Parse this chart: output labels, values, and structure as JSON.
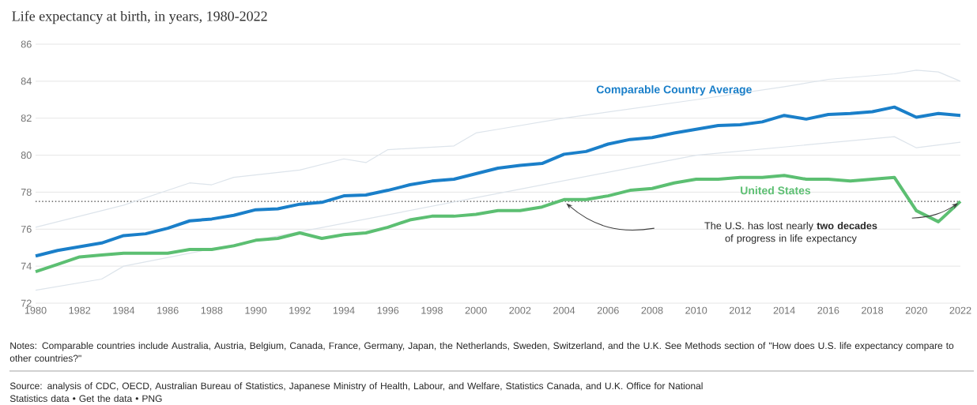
{
  "chart_data": {
    "type": "line",
    "title": "Life expectancy at birth, in years, 1980-2022",
    "x": [
      1980,
      1981,
      1982,
      1983,
      1984,
      1985,
      1986,
      1987,
      1988,
      1989,
      1990,
      1991,
      1992,
      1993,
      1994,
      1995,
      1996,
      1997,
      1998,
      1999,
      2000,
      2001,
      2002,
      2003,
      2004,
      2005,
      2006,
      2007,
      2008,
      2009,
      2010,
      2011,
      2012,
      2013,
      2014,
      2015,
      2016,
      2017,
      2018,
      2019,
      2020,
      2021,
      2022
    ],
    "series": [
      {
        "color": "#dde4eb",
        "x": [
          1980,
          1984,
          1987,
          1988,
          1989,
          1992,
          1994,
          1995,
          1996,
          1999,
          2000,
          2001,
          2004,
          2010,
          2014,
          2016,
          2019,
          2020,
          2021,
          2022
        ],
        "values": [
          76.1,
          77.3,
          78.5,
          78.4,
          78.8,
          79.2,
          79.8,
          79.6,
          80.3,
          80.5,
          81.2,
          81.4,
          82.0,
          83.0,
          83.7,
          84.1,
          84.4,
          84.6,
          84.5,
          84.0
        ]
      },
      {
        "color": "#dde4eb",
        "x": [
          1980,
          1983,
          1984,
          1990,
          2000,
          2010,
          2019,
          2020,
          2022
        ],
        "values": [
          72.7,
          73.3,
          74.0,
          75.4,
          77.7,
          80.0,
          81.0,
          80.4,
          80.7
        ]
      },
      {
        "name": "Comparable Country Average",
        "color": "#1a7fc9",
        "values": [
          74.55,
          74.85,
          75.05,
          75.25,
          75.65,
          75.75,
          76.05,
          76.45,
          76.55,
          76.75,
          77.05,
          77.1,
          77.35,
          77.45,
          77.8,
          77.85,
          78.1,
          78.4,
          78.6,
          78.7,
          79.0,
          79.3,
          79.45,
          79.55,
          80.05,
          80.2,
          80.6,
          80.85,
          80.95,
          81.2,
          81.4,
          81.6,
          81.65,
          81.8,
          82.15,
          81.95,
          82.2,
          82.25,
          82.35,
          82.6,
          82.05,
          82.25,
          82.15
        ]
      },
      {
        "name": "United States",
        "color": "#5cbf72",
        "values": [
          73.7,
          74.1,
          74.5,
          74.6,
          74.7,
          74.7,
          74.7,
          74.9,
          74.9,
          75.1,
          75.4,
          75.5,
          75.8,
          75.5,
          75.7,
          75.8,
          76.1,
          76.5,
          76.7,
          76.7,
          76.8,
          77.0,
          77.0,
          77.2,
          77.6,
          77.6,
          77.8,
          78.1,
          78.2,
          78.5,
          78.7,
          78.7,
          78.8,
          78.8,
          78.9,
          78.7,
          78.7,
          78.6,
          78.7,
          78.8,
          77.0,
          76.4,
          77.5
        ]
      }
    ],
    "xlim": [
      1980,
      2022
    ],
    "xticks": [
      1980,
      1982,
      1984,
      1986,
      1988,
      1990,
      1992,
      1994,
      1996,
      1998,
      2000,
      2002,
      2004,
      2006,
      2008,
      2010,
      2012,
      2014,
      2016,
      2018,
      2020,
      2022
    ],
    "ylim": [
      72,
      86
    ],
    "yticks": [
      72,
      74,
      76,
      78,
      80,
      82,
      84,
      86
    ],
    "grid": "y",
    "marker": "none",
    "line_style": "solid",
    "ref_lines": [
      {
        "axis": "y",
        "value": 77.5,
        "color": "#444444",
        "line_style": "dotted"
      }
    ],
    "annotations": [
      "The U.S. has lost nearly **two decades** of progress in life expectancy",
      "Notes: Comparable countries include Australia, Austria, Belgium, Canada, France, Germany, Japan, the Netherlands, Sweden, Switzerland, and the U.K. See Methods section of \"How does U.S. life expectancy compare to other countries?\"",
      "Source: analysis of CDC, OECD, Australian Bureau of Statistics, Japanese Ministry of Health, Labour, and Welfare, Statistics Canada, and U.K. Office for National Statistics data • Get the data • PNG"
    ]
  }
}
